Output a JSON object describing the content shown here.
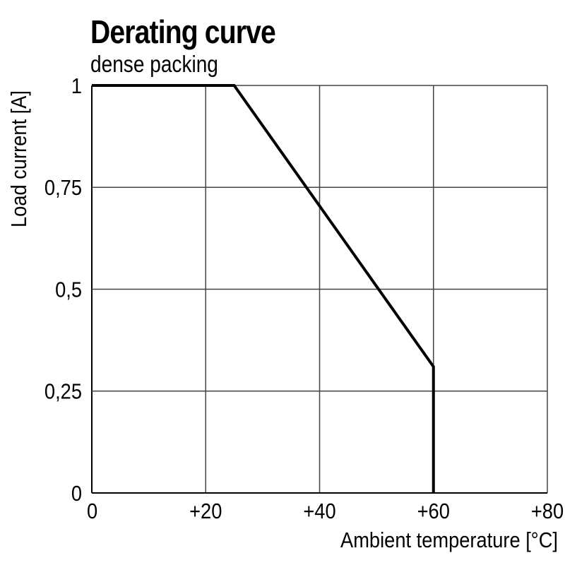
{
  "chart_data": {
    "type": "line",
    "title": "Derating curve",
    "subtitle": "dense packing",
    "xlabel": "Ambient temperature [°C]",
    "ylabel": "Load current [A]",
    "xlim": [
      0,
      80
    ],
    "ylim": [
      0,
      1
    ],
    "x_ticks": [
      0,
      20,
      40,
      60,
      80
    ],
    "x_tick_labels": [
      "0",
      "+20",
      "+40",
      "+60",
      "+80"
    ],
    "y_ticks": [
      0,
      0.25,
      0.5,
      0.75,
      1
    ],
    "y_tick_labels": [
      "0",
      "0,25",
      "0,5",
      "0,75",
      "1"
    ],
    "grid": true,
    "series": [
      {
        "x": [
          0,
          25,
          60,
          60
        ],
        "y": [
          1,
          1,
          0.31,
          0
        ]
      }
    ],
    "colors": {
      "line": "#000000",
      "grid": "#444444"
    }
  }
}
